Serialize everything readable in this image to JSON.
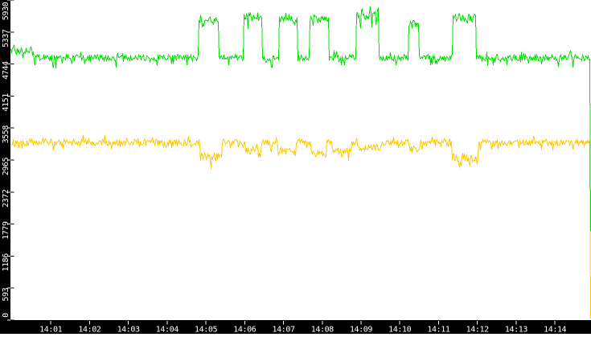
{
  "chart_data": {
    "type": "line",
    "title": "",
    "xlabel": "",
    "ylabel": "",
    "legend": "none",
    "grid": false,
    "plot_bg": "#ffffff",
    "axis_bg": "#000000",
    "axis_text_color": "#ffffff",
    "ylim": [
      0,
      5930
    ],
    "y_ticks": [
      0,
      593,
      1186,
      1779,
      2372,
      2965,
      3558,
      4151,
      4744,
      5337,
      5930
    ],
    "xlim_minutes": [
      -0.04,
      14.93
    ],
    "x_ticks": [
      {
        "minute": 1,
        "label": "14:01"
      },
      {
        "minute": 2,
        "label": "14:02"
      },
      {
        "minute": 3,
        "label": "14:03"
      },
      {
        "minute": 4,
        "label": "14:04"
      },
      {
        "minute": 5,
        "label": "14:05"
      },
      {
        "minute": 6,
        "label": "14:06"
      },
      {
        "minute": 7,
        "label": "14:07"
      },
      {
        "minute": 8,
        "label": "14:08"
      },
      {
        "minute": 9,
        "label": "14:09"
      },
      {
        "minute": 10,
        "label": "14:10"
      },
      {
        "minute": 11,
        "label": "14:11"
      },
      {
        "minute": 12,
        "label": "14:12"
      },
      {
        "minute": 13,
        "label": "14:13"
      },
      {
        "minute": 14,
        "label": "14:14"
      }
    ],
    "series": [
      {
        "name": "green-series",
        "color": "#00e000",
        "baseline": 4860,
        "noise": 60,
        "spike_prob": 0.13,
        "spike_mag": 2.3,
        "up_prob": 0.08,
        "up_mag": 1.8,
        "seed": 424242,
        "final_value": 1650,
        "events": [
          {
            "start": -0.05,
            "end": 0.55,
            "level": 4980
          },
          {
            "start": 4.81,
            "end": 5.33,
            "level": 5560
          },
          {
            "start": 5.97,
            "end": 6.43,
            "level": 5620,
            "noise": 80
          },
          {
            "start": 6.88,
            "end": 7.35,
            "level": 5570
          },
          {
            "start": 7.67,
            "end": 8.15,
            "level": 5580
          },
          {
            "start": 8.87,
            "end": 9.45,
            "level": 5680,
            "noise": 95
          },
          {
            "start": 10.22,
            "end": 10.49,
            "level": 5480,
            "noise": 80
          },
          {
            "start": 11.36,
            "end": 11.96,
            "level": 5600,
            "noise": 75
          }
        ]
      },
      {
        "name": "yellow-series",
        "color": "#ffc800",
        "baseline": 3290,
        "noise": 60,
        "spike_prob": 0.13,
        "spike_mag": 2.2,
        "up_prob": 0.07,
        "up_mag": 1.7,
        "seed": 987654,
        "final_value": 30,
        "events": [
          {
            "start": 4.85,
            "end": 5.4,
            "level": 3020,
            "noise": 85
          },
          {
            "start": 6.0,
            "end": 6.42,
            "level": 3140
          },
          {
            "start": 6.85,
            "end": 7.32,
            "level": 3120
          },
          {
            "start": 7.7,
            "end": 8.1,
            "level": 3080
          },
          {
            "start": 8.25,
            "end": 8.75,
            "level": 3120
          },
          {
            "start": 8.9,
            "end": 9.5,
            "level": 3190
          },
          {
            "start": 10.22,
            "end": 10.5,
            "level": 3180
          },
          {
            "start": 11.33,
            "end": 12.02,
            "level": 3010,
            "noise": 90
          }
        ]
      }
    ]
  }
}
